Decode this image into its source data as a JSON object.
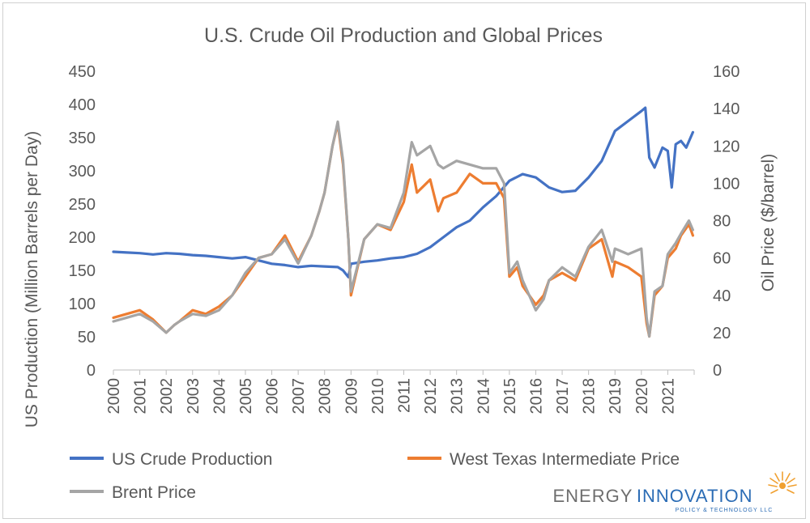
{
  "chart_data": {
    "type": "line",
    "title": "U.S. Crude Oil Production and Global Prices",
    "ylabel": "US Production (Million Barrels per Day)",
    "y2label": "Oil Price ($/barrel)",
    "ylim": [
      0,
      450
    ],
    "y2lim": [
      0,
      160
    ],
    "yticks": [
      "0",
      "50",
      "100",
      "150",
      "200",
      "250",
      "300",
      "350",
      "400",
      "450"
    ],
    "y2ticks": [
      "0",
      "20",
      "40",
      "60",
      "80",
      "100",
      "120",
      "140",
      "160"
    ],
    "xticks": [
      "2000",
      "2001",
      "2002",
      "2003",
      "2004",
      "2005",
      "2006",
      "2007",
      "2008",
      "2009",
      "2010",
      "2011",
      "2012",
      "2013",
      "2014",
      "2015",
      "2016",
      "2017",
      "2018",
      "2019",
      "2020",
      "2021"
    ],
    "xlim": [
      2000,
      2022
    ],
    "grid": false,
    "legend_position": "bottom",
    "series": [
      {
        "name": "US Crude Production",
        "axis": "left",
        "color": "#4472c4",
        "x": [
          2000,
          2000.5,
          2001,
          2001.5,
          2002,
          2002.5,
          2003,
          2003.5,
          2004,
          2004.5,
          2005,
          2005.5,
          2006,
          2006.5,
          2007,
          2007.5,
          2008,
          2008.5,
          2008.7,
          2008.9,
          2009,
          2009.5,
          2010,
          2010.5,
          2011,
          2011.5,
          2012,
          2012.5,
          2013,
          2013.5,
          2014,
          2014.5,
          2015,
          2015.5,
          2016,
          2016.5,
          2017,
          2017.5,
          2018,
          2018.5,
          2019,
          2019.5,
          2020,
          2020.15,
          2020.3,
          2020.5,
          2020.8,
          2021,
          2021.15,
          2021.3,
          2021.5,
          2021.7,
          2021.95
        ],
        "y": [
          178,
          177,
          176,
          174,
          176,
          175,
          173,
          172,
          170,
          168,
          170,
          165,
          160,
          158,
          155,
          157,
          156,
          155,
          150,
          140,
          160,
          163,
          165,
          168,
          170,
          175,
          185,
          200,
          215,
          225,
          245,
          262,
          285,
          295,
          290,
          275,
          268,
          270,
          290,
          315,
          360,
          375,
          390,
          395,
          320,
          305,
          335,
          330,
          275,
          340,
          345,
          335,
          358
        ]
      },
      {
        "name": "West Texas Intermediate Price",
        "axis": "right",
        "color": "#ed7d31",
        "x": [
          2000,
          2000.5,
          2001,
          2001.5,
          2002,
          2002.3,
          2002.5,
          2003,
          2003.5,
          2004,
          2004.5,
          2005,
          2005.5,
          2006,
          2006.5,
          2007,
          2007.5,
          2007.8,
          2008,
          2008.3,
          2008.5,
          2008.7,
          2008.9,
          2009,
          2009.5,
          2010,
          2010.5,
          2011,
          2011.3,
          2011.5,
          2012,
          2012.3,
          2012.5,
          2013,
          2013.5,
          2014,
          2014.5,
          2014.8,
          2015,
          2015.3,
          2015.5,
          2016,
          2016.3,
          2016.5,
          2017,
          2017.5,
          2018,
          2018.5,
          2018.9,
          2019,
          2019.5,
          2020,
          2020.2,
          2020.3,
          2020.5,
          2020.8,
          2021,
          2021.3,
          2021.5,
          2021.8,
          2021.95
        ],
        "y": [
          28,
          30,
          32,
          27,
          20,
          24,
          26,
          32,
          30,
          34,
          40,
          50,
          60,
          62,
          72,
          58,
          72,
          85,
          95,
          120,
          132,
          110,
          70,
          40,
          70,
          78,
          75,
          90,
          110,
          95,
          102,
          85,
          92,
          95,
          105,
          100,
          100,
          92,
          50,
          55,
          45,
          35,
          40,
          48,
          52,
          48,
          65,
          70,
          50,
          58,
          55,
          50,
          25,
          18,
          40,
          45,
          60,
          65,
          72,
          78,
          72
        ]
      },
      {
        "name": "Brent Price",
        "axis": "right",
        "color": "#a5a5a5",
        "x": [
          2000,
          2000.5,
          2001,
          2001.5,
          2002,
          2002.3,
          2002.5,
          2003,
          2003.5,
          2004,
          2004.5,
          2005,
          2005.5,
          2006,
          2006.5,
          2007,
          2007.5,
          2007.8,
          2008,
          2008.3,
          2008.5,
          2008.7,
          2008.9,
          2009,
          2009.5,
          2010,
          2010.5,
          2011,
          2011.3,
          2011.5,
          2012,
          2012.3,
          2012.5,
          2013,
          2013.5,
          2014,
          2014.5,
          2014.8,
          2015,
          2015.3,
          2015.5,
          2016,
          2016.3,
          2016.5,
          2017,
          2017.5,
          2018,
          2018.5,
          2018.9,
          2019,
          2019.5,
          2020,
          2020.2,
          2020.3,
          2020.5,
          2020.8,
          2021,
          2021.3,
          2021.5,
          2021.8,
          2021.95
        ],
        "y": [
          26,
          28,
          30,
          26,
          20,
          24,
          26,
          30,
          29,
          32,
          40,
          52,
          60,
          62,
          70,
          57,
          72,
          85,
          95,
          120,
          133,
          112,
          70,
          42,
          70,
          78,
          76,
          95,
          122,
          115,
          120,
          110,
          108,
          112,
          110,
          108,
          108,
          100,
          52,
          58,
          48,
          32,
          38,
          48,
          55,
          50,
          66,
          75,
          58,
          65,
          62,
          65,
          28,
          18,
          42,
          45,
          62,
          68,
          73,
          80,
          75
        ]
      }
    ]
  },
  "logo": {
    "word1": "ENERGY",
    "word2": "INNOVATION",
    "tagline": "POLICY & TECHNOLOGY LLC"
  }
}
